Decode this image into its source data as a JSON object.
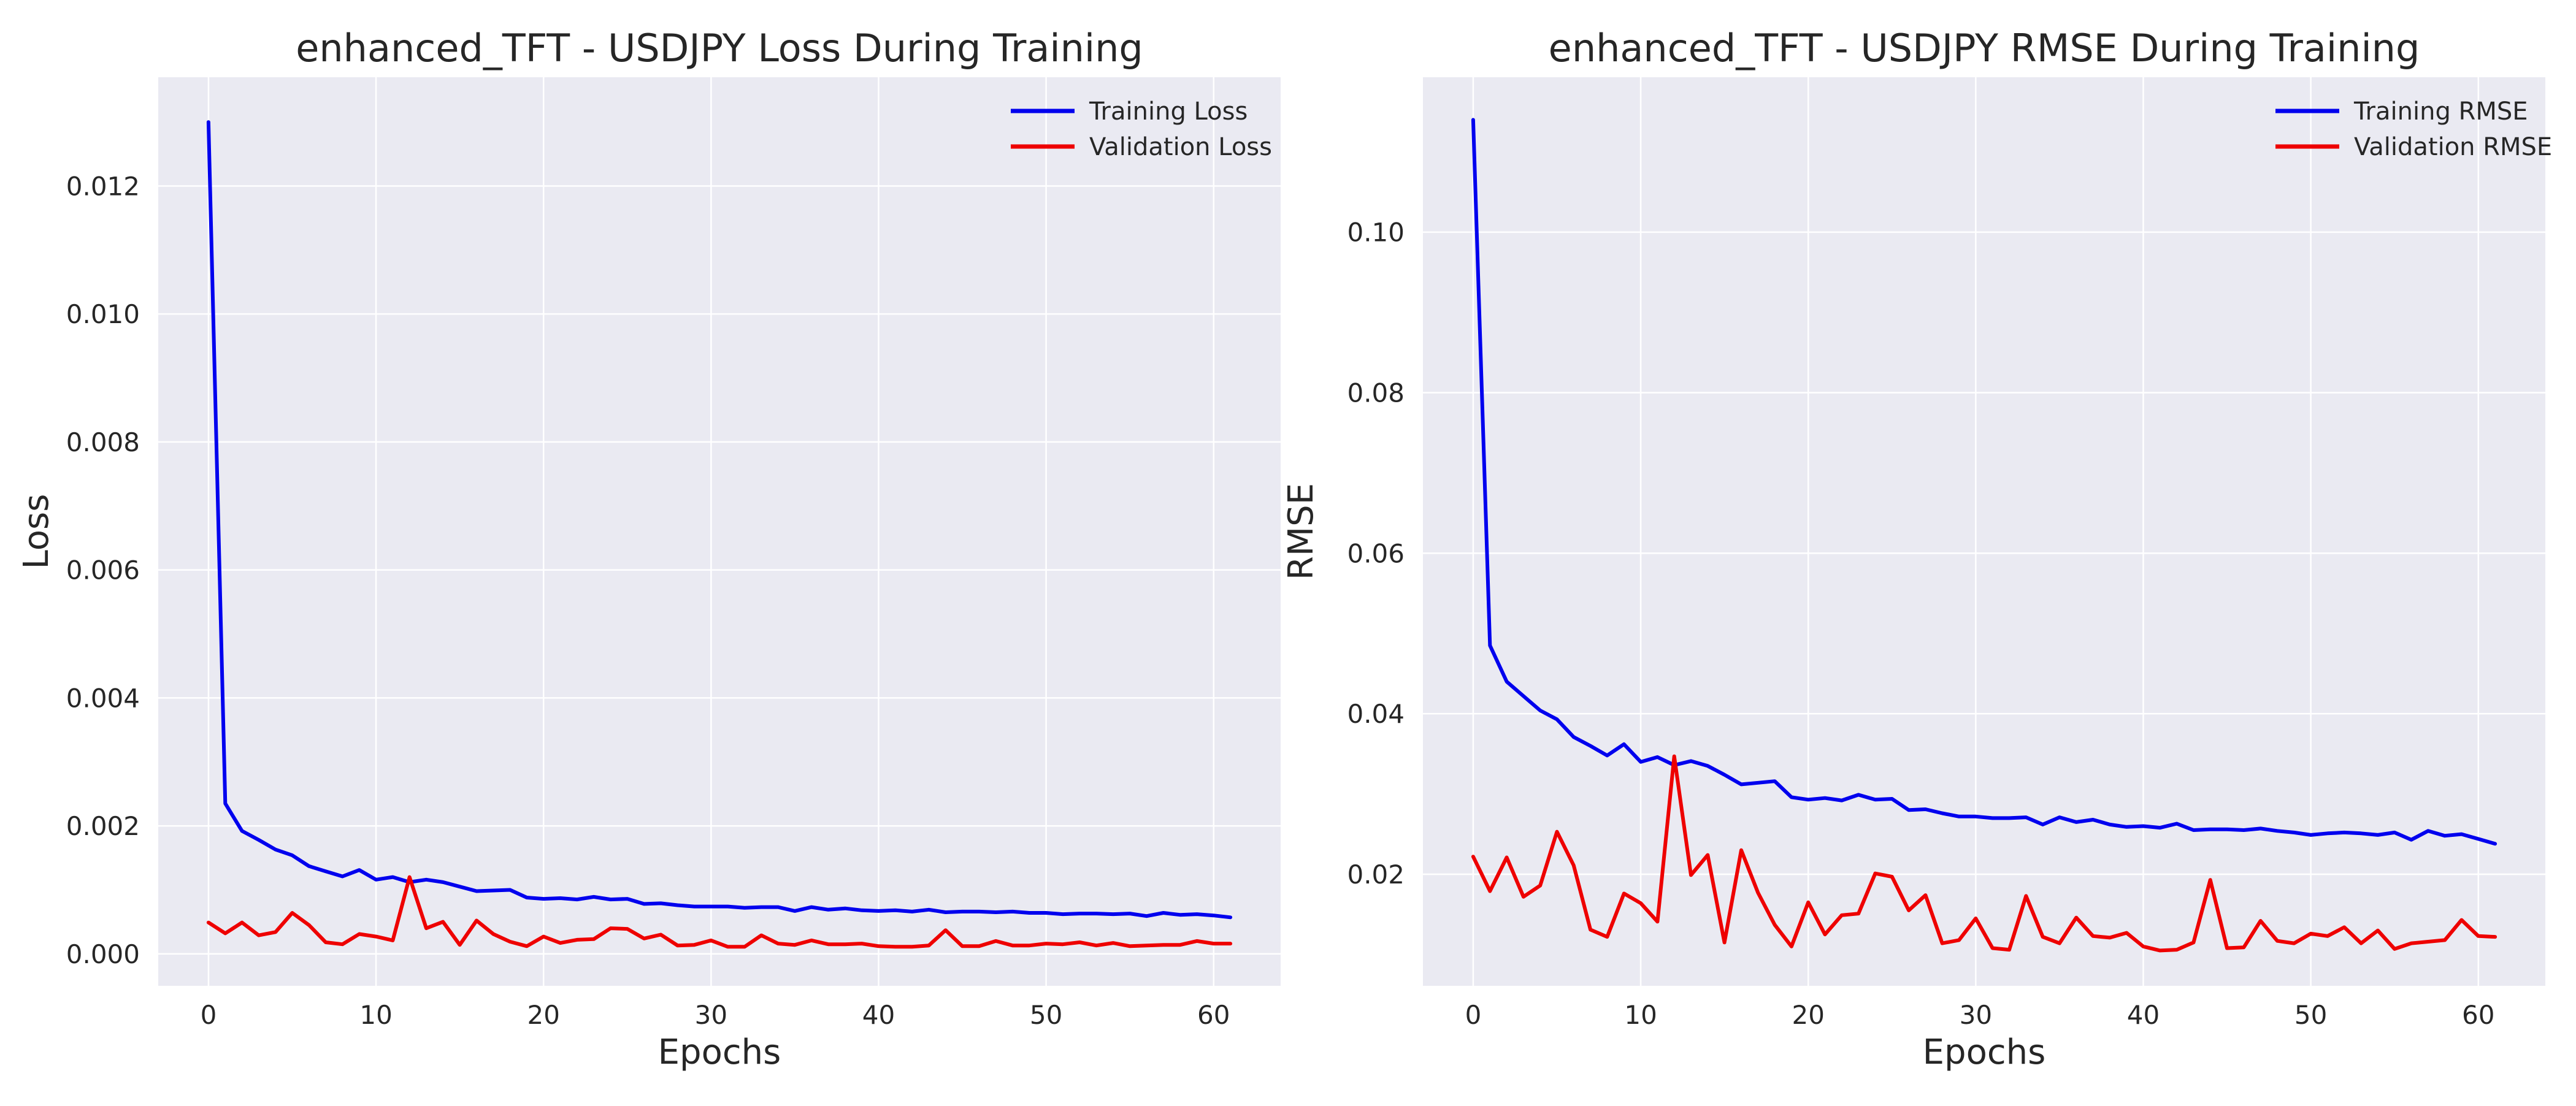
{
  "chart_data": [
    {
      "type": "line",
      "title": "enhanced_TFT - USDJPY Loss During Training",
      "xlabel": "Epochs",
      "ylabel": "Loss",
      "xlim": [
        -3,
        64
      ],
      "ylim": [
        -0.0005,
        0.0137
      ],
      "xticks": [
        0,
        10,
        20,
        30,
        40,
        50,
        60
      ],
      "xtick_labels": [
        "0",
        "10",
        "20",
        "30",
        "40",
        "50",
        "60"
      ],
      "yticks": [
        0,
        0.002,
        0.004,
        0.006,
        0.008,
        0.01,
        0.012
      ],
      "ytick_labels": [
        "0.000",
        "0.002",
        "0.004",
        "0.006",
        "0.008",
        "0.010",
        "0.012"
      ],
      "grid": true,
      "legend_position": "top-right",
      "x": [
        0,
        1,
        2,
        3,
        4,
        5,
        6,
        7,
        8,
        9,
        10,
        11,
        12,
        13,
        14,
        15,
        16,
        17,
        18,
        19,
        20,
        21,
        22,
        23,
        24,
        25,
        26,
        27,
        28,
        29,
        30,
        31,
        32,
        33,
        34,
        35,
        36,
        37,
        38,
        39,
        40,
        41,
        42,
        43,
        44,
        45,
        46,
        47,
        48,
        49,
        50,
        51,
        52,
        53,
        54,
        55,
        56,
        57,
        58,
        59,
        60,
        61
      ],
      "series": [
        {
          "name": "Training Loss",
          "color": "#0000ee",
          "values": [
            0.013,
            0.00235,
            0.00192,
            0.00178,
            0.00163,
            0.00154,
            0.00137,
            0.00129,
            0.00121,
            0.00131,
            0.00116,
            0.0012,
            0.00112,
            0.00116,
            0.00112,
            0.00105,
            0.00098,
            0.00099,
            0.001,
            0.00088,
            0.00086,
            0.00087,
            0.00085,
            0.00089,
            0.00085,
            0.00086,
            0.00078,
            0.00079,
            0.00076,
            0.00074,
            0.00074,
            0.00074,
            0.00072,
            0.00073,
            0.00073,
            0.00067,
            0.00073,
            0.00069,
            0.00071,
            0.00068,
            0.00067,
            0.00068,
            0.00066,
            0.00069,
            0.00065,
            0.00066,
            0.00066,
            0.00065,
            0.00066,
            0.00064,
            0.00064,
            0.00062,
            0.00063,
            0.00063,
            0.00062,
            0.00063,
            0.00059,
            0.00064,
            0.00061,
            0.00062,
            0.0006,
            0.00057
          ]
        },
        {
          "name": "Validation Loss",
          "color": "#ee0000",
          "values": [
            0.00049,
            0.00032,
            0.00049,
            0.00029,
            0.00034,
            0.00064,
            0.00045,
            0.00018,
            0.00015,
            0.00031,
            0.00027,
            0.00021,
            0.0012,
            0.0004,
            0.0005,
            0.00014,
            0.00052,
            0.00031,
            0.00019,
            0.00012,
            0.00027,
            0.00017,
            0.00022,
            0.00023,
            0.0004,
            0.00039,
            0.00024,
            0.0003,
            0.00013,
            0.00014,
            0.00021,
            0.00011,
            0.00011,
            0.00029,
            0.00016,
            0.00014,
            0.00021,
            0.00015,
            0.00015,
            0.00016,
            0.00012,
            0.00011,
            0.00011,
            0.00013,
            0.00037,
            0.00012,
            0.00012,
            0.0002,
            0.00013,
            0.00013,
            0.00016,
            0.00015,
            0.00018,
            0.00013,
            0.00017,
            0.00012,
            0.00013,
            0.00014,
            0.00014,
            0.0002,
            0.00016,
            0.00016
          ]
        }
      ]
    },
    {
      "type": "line",
      "title": "enhanced_TFT - USDJPY RMSE During Training",
      "xlabel": "Epochs",
      "ylabel": "RMSE",
      "xlim": [
        -3,
        64
      ],
      "ylim": [
        0.0061,
        0.1193
      ],
      "xticks": [
        0,
        10,
        20,
        30,
        40,
        50,
        60
      ],
      "xtick_labels": [
        "0",
        "10",
        "20",
        "30",
        "40",
        "50",
        "60"
      ],
      "yticks": [
        0.02,
        0.04,
        0.06,
        0.08,
        0.1
      ],
      "ytick_labels": [
        "0.02",
        "0.04",
        "0.06",
        "0.08",
        "0.10"
      ],
      "grid": true,
      "legend_position": "top-right",
      "x": [
        0,
        1,
        2,
        3,
        4,
        5,
        6,
        7,
        8,
        9,
        10,
        11,
        12,
        13,
        14,
        15,
        16,
        17,
        18,
        19,
        20,
        21,
        22,
        23,
        24,
        25,
        26,
        27,
        28,
        29,
        30,
        31,
        32,
        33,
        34,
        35,
        36,
        37,
        38,
        39,
        40,
        41,
        42,
        43,
        44,
        45,
        46,
        47,
        48,
        49,
        50,
        51,
        52,
        53,
        54,
        55,
        56,
        57,
        58,
        59,
        60,
        61
      ],
      "series": [
        {
          "name": "Training RMSE",
          "color": "#0000ee",
          "values": [
            0.114,
            0.0485,
            0.044,
            0.0422,
            0.0404,
            0.0393,
            0.0371,
            0.036,
            0.0348,
            0.0362,
            0.034,
            0.0346,
            0.0336,
            0.0341,
            0.0335,
            0.0324,
            0.0312,
            0.0314,
            0.0316,
            0.0296,
            0.0293,
            0.0295,
            0.0292,
            0.0299,
            0.0293,
            0.0294,
            0.028,
            0.0281,
            0.0276,
            0.0272,
            0.0272,
            0.027,
            0.027,
            0.0271,
            0.0262,
            0.0271,
            0.0265,
            0.0268,
            0.0262,
            0.0259,
            0.026,
            0.0258,
            0.0263,
            0.0255,
            0.0256,
            0.0256,
            0.0255,
            0.0257,
            0.0254,
            0.0252,
            0.0249,
            0.0251,
            0.0252,
            0.0251,
            0.0249,
            0.0252,
            0.0243,
            0.0254,
            0.0248,
            0.025,
            0.0244,
            0.0238
          ]
        },
        {
          "name": "Validation RMSE",
          "color": "#ee0000",
          "values": [
            0.0222,
            0.0179,
            0.0221,
            0.0172,
            0.0186,
            0.0253,
            0.0211,
            0.0131,
            0.0122,
            0.0176,
            0.0164,
            0.0141,
            0.0347,
            0.0199,
            0.0224,
            0.0115,
            0.023,
            0.0177,
            0.0137,
            0.011,
            0.0165,
            0.0125,
            0.0149,
            0.0151,
            0.0201,
            0.0197,
            0.0155,
            0.0174,
            0.0114,
            0.0118,
            0.0145,
            0.0108,
            0.0106,
            0.0173,
            0.0122,
            0.0114,
            0.0146,
            0.0123,
            0.0121,
            0.0127,
            0.011,
            0.0105,
            0.0106,
            0.0115,
            0.0193,
            0.0108,
            0.0109,
            0.0142,
            0.0117,
            0.0114,
            0.0126,
            0.0123,
            0.0134,
            0.0114,
            0.013,
            0.0107,
            0.0114,
            0.0116,
            0.0118,
            0.0143,
            0.0123,
            0.0122
          ]
        }
      ]
    }
  ]
}
